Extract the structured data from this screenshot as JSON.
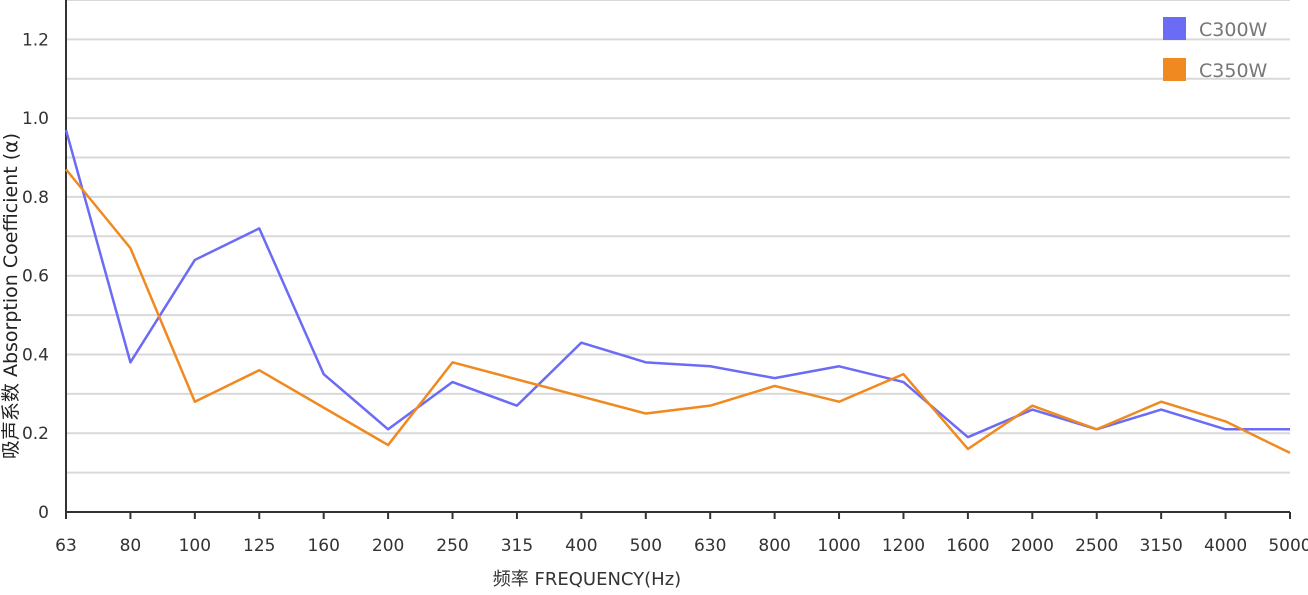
{
  "chart_data": {
    "type": "line",
    "title": "",
    "xlabel": "频率 FREQUENCY(Hz)",
    "ylabel": "吸声系数 Absorption Coefficient (α)",
    "categories": [
      "63",
      "80",
      "100",
      "125",
      "160",
      "200",
      "250",
      "315",
      "400",
      "500",
      "630",
      "800",
      "1000",
      "1200",
      "1600",
      "2000",
      "2500",
      "3150",
      "4000",
      "5000"
    ],
    "ylim": [
      0,
      1.3
    ],
    "yticks": [
      0,
      0.2,
      0.4,
      0.6,
      0.8,
      1.0,
      1.2
    ],
    "ytick_labels": [
      "0",
      "0.2",
      "0.4",
      "0.6",
      "0.8",
      "1.0",
      "1.2"
    ],
    "grid": true,
    "legend_position": "top-right",
    "series": [
      {
        "name": "C300W",
        "color": "#6b6bf5",
        "points": [
          {
            "x": "63",
            "y": 0.97
          },
          {
            "x": "80",
            "y": 0.38
          },
          {
            "x": "100",
            "y": 0.64
          },
          {
            "x": "125",
            "y": 0.72
          },
          {
            "x": "160",
            "y": 0.35
          },
          {
            "x": "200",
            "y": 0.21
          },
          {
            "x": "250",
            "y": 0.33
          },
          {
            "x": "315",
            "y": 0.27
          },
          {
            "x": "400",
            "y": 0.43
          },
          {
            "x": "500",
            "y": 0.38
          },
          {
            "x": "630",
            "y": 0.37
          },
          {
            "x": "800",
            "y": 0.34
          },
          {
            "x": "1000",
            "y": 0.37
          },
          {
            "x": "1200",
            "y": 0.33
          },
          {
            "x": "1600",
            "y": 0.19
          },
          {
            "x": "2000",
            "y": 0.26
          },
          {
            "x": "2500",
            "y": 0.21
          },
          {
            "x": "3150",
            "y": 0.26
          },
          {
            "x": "4000",
            "y": 0.21
          },
          {
            "x": "5000",
            "y": 0.21
          }
        ]
      },
      {
        "name": "C350W",
        "color": "#f0891f",
        "points": [
          {
            "x": "63",
            "y": 0.87
          },
          {
            "x": "80",
            "y": 0.67
          },
          {
            "x": "100",
            "y": 0.28
          },
          {
            "x": "125",
            "y": 0.36
          },
          {
            "x": "200",
            "y": 0.17
          },
          {
            "x": "250",
            "y": 0.38
          },
          {
            "x": "500",
            "y": 0.25
          },
          {
            "x": "630",
            "y": 0.27
          },
          {
            "x": "800",
            "y": 0.32
          },
          {
            "x": "1000",
            "y": 0.28
          },
          {
            "x": "1200",
            "y": 0.35
          },
          {
            "x": "1600",
            "y": 0.16
          },
          {
            "x": "2000",
            "y": 0.27
          },
          {
            "x": "2500",
            "y": 0.21
          },
          {
            "x": "3150",
            "y": 0.28
          },
          {
            "x": "4000",
            "y": 0.23
          },
          {
            "x": "5000",
            "y": 0.15
          }
        ]
      }
    ]
  }
}
